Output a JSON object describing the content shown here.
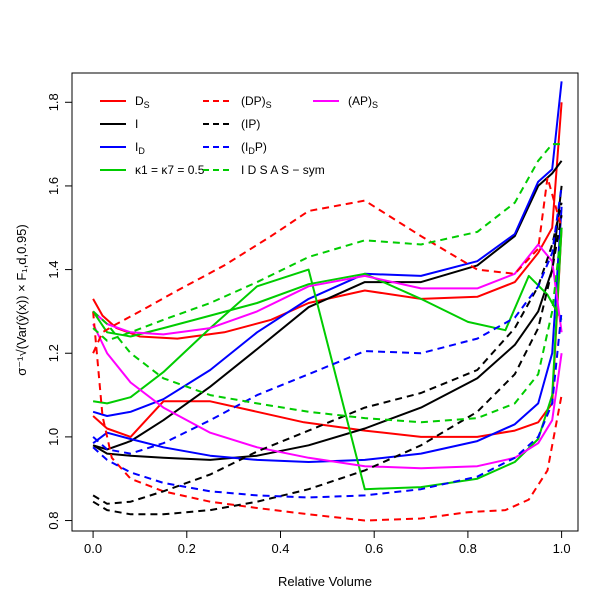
{
  "chart_data": {
    "type": "line",
    "title": "",
    "xlabel": "Relative Volume",
    "ylabel": "σ⁻¹√(Var(ŷ(x)) × F₁,d,0.95)",
    "xlim": [
      0,
      1
    ],
    "ylim": [
      0.8,
      1.85
    ],
    "x_ticks": [
      "0.0",
      "0.2",
      "0.4",
      "0.6",
      "0.8",
      "1.0"
    ],
    "y_ticks": [
      "0.8",
      "1.0",
      "1.2",
      "1.4",
      "1.6",
      "1.8"
    ],
    "grid": false,
    "legend_position": "top",
    "legend": [
      {
        "label": "Ds",
        "color": "#ff0000",
        "dash": "solid",
        "main": "D",
        "sub": "S"
      },
      {
        "label": "I",
        "color": "#000000",
        "dash": "solid",
        "main": "I",
        "sub": ""
      },
      {
        "label": "ID",
        "color": "#0000ff",
        "dash": "solid",
        "main": "I",
        "sub": "D"
      },
      {
        "label": "κ1 = κ7 = 0.5",
        "color": "#00cc00",
        "dash": "solid",
        "main": "κ1 =  κ7 = 0.5",
        "sub": ""
      },
      {
        "label": "(DP)s",
        "color": "#ff0000",
        "dash": "dashed",
        "main": "(DP)",
        "sub": "S"
      },
      {
        "label": "(IP)",
        "color": "#000000",
        "dash": "dashed",
        "main": "(IP)",
        "sub": ""
      },
      {
        "label": "(IDP)",
        "color": "#0000ff",
        "dash": "dashed",
        "main": "(I",
        "sub": "D",
        "tail": "P)"
      },
      {
        "label": "ID Ds As − sym",
        "color": "#00cc00",
        "dash": "dashed",
        "main": "I D S A S − sym",
        "sub": ""
      },
      {
        "label": "(AP)s",
        "color": "#ff00ff",
        "dash": "solid",
        "main": "(AP)",
        "sub": "S"
      }
    ],
    "series": [
      {
        "legend": "Ds",
        "color": "#ff0000",
        "dash": "solid",
        "bound": "max",
        "x": [
          0,
          0.02,
          0.05,
          0.1,
          0.18,
          0.28,
          0.38,
          0.46,
          0.58,
          0.7,
          0.82,
          0.9,
          0.95,
          0.98,
          1.0
        ],
        "y": [
          1.33,
          1.29,
          1.26,
          1.24,
          1.235,
          1.25,
          1.28,
          1.32,
          1.35,
          1.33,
          1.335,
          1.37,
          1.44,
          1.5,
          1.8
        ]
      },
      {
        "legend": "Ds",
        "color": "#ff0000",
        "dash": "solid",
        "bound": "min",
        "x": [
          0,
          0.03,
          0.08,
          0.15,
          0.25,
          0.35,
          0.45,
          0.58,
          0.7,
          0.82,
          0.9,
          0.95,
          0.98,
          1.0
        ],
        "y": [
          1.05,
          1.02,
          1.0,
          1.085,
          1.085,
          1.06,
          1.035,
          1.015,
          1.0,
          1.0,
          1.015,
          1.035,
          1.08,
          1.5
        ]
      },
      {
        "legend": "I",
        "color": "#000000",
        "dash": "solid",
        "bound": "max",
        "x": [
          0,
          0.03,
          0.08,
          0.15,
          0.25,
          0.35,
          0.46,
          0.58,
          0.7,
          0.82,
          0.9,
          0.95,
          0.98,
          1.0
        ],
        "y": [
          0.98,
          0.97,
          0.99,
          1.04,
          1.12,
          1.21,
          1.31,
          1.37,
          1.37,
          1.41,
          1.48,
          1.6,
          1.63,
          1.66
        ]
      },
      {
        "legend": "I",
        "color": "#000000",
        "dash": "solid",
        "bound": "min",
        "x": [
          0,
          0.03,
          0.08,
          0.15,
          0.25,
          0.35,
          0.46,
          0.58,
          0.7,
          0.82,
          0.9,
          0.95,
          0.98,
          1.0
        ],
        "y": [
          0.98,
          0.96,
          0.955,
          0.95,
          0.945,
          0.955,
          0.98,
          1.02,
          1.07,
          1.14,
          1.22,
          1.3,
          1.4,
          1.6
        ]
      },
      {
        "legend": "ID",
        "color": "#0000ff",
        "dash": "solid",
        "bound": "max",
        "x": [
          0,
          0.03,
          0.08,
          0.15,
          0.25,
          0.35,
          0.46,
          0.58,
          0.7,
          0.82,
          0.9,
          0.95,
          0.98,
          1.0
        ],
        "y": [
          1.06,
          1.05,
          1.06,
          1.09,
          1.16,
          1.25,
          1.33,
          1.39,
          1.385,
          1.42,
          1.485,
          1.61,
          1.64,
          1.85
        ]
      },
      {
        "legend": "ID",
        "color": "#0000ff",
        "dash": "solid",
        "bound": "min",
        "x": [
          0,
          0.03,
          0.08,
          0.15,
          0.25,
          0.35,
          0.46,
          0.58,
          0.7,
          0.82,
          0.9,
          0.95,
          0.98,
          1.0
        ],
        "y": [
          0.985,
          1.01,
          0.995,
          0.975,
          0.955,
          0.945,
          0.94,
          0.945,
          0.96,
          0.99,
          1.03,
          1.08,
          1.2,
          1.55
        ]
      },
      {
        "legend": "κ1 = κ7 = 0.5",
        "color": "#00cc00",
        "dash": "solid",
        "bound": "max",
        "x": [
          0,
          0.03,
          0.08,
          0.15,
          0.25,
          0.35,
          0.46,
          0.58,
          0.7,
          0.8,
          0.88,
          0.93,
          0.97,
          1.0
        ],
        "y": [
          1.3,
          1.25,
          1.24,
          1.26,
          1.29,
          1.32,
          1.365,
          1.39,
          1.33,
          1.275,
          1.255,
          1.385,
          1.34,
          1.28
        ]
      },
      {
        "legend": "κ1 = κ7 = 0.5",
        "color": "#00cc00",
        "dash": "solid",
        "bound": "min",
        "x": [
          0,
          0.03,
          0.08,
          0.15,
          0.25,
          0.35,
          0.46,
          0.58,
          0.7,
          0.82,
          0.9,
          0.95,
          0.98,
          1.0
        ],
        "y": [
          1.085,
          1.08,
          1.095,
          1.155,
          1.26,
          1.36,
          1.4,
          0.875,
          0.88,
          0.9,
          0.94,
          0.995,
          1.1,
          1.5
        ]
      },
      {
        "legend": "(AP)s",
        "color": "#ff00ff",
        "dash": "solid",
        "bound": "max",
        "x": [
          0,
          0.03,
          0.08,
          0.15,
          0.25,
          0.35,
          0.46,
          0.58,
          0.7,
          0.82,
          0.9,
          0.95,
          0.98,
          1.0
        ],
        "y": [
          1.3,
          1.27,
          1.25,
          1.245,
          1.26,
          1.3,
          1.36,
          1.385,
          1.355,
          1.355,
          1.39,
          1.46,
          1.42,
          1.25
        ]
      },
      {
        "legend": "(AP)s",
        "color": "#ff00ff",
        "dash": "solid",
        "bound": "min",
        "x": [
          0,
          0.03,
          0.08,
          0.15,
          0.25,
          0.35,
          0.46,
          0.58,
          0.7,
          0.82,
          0.9,
          0.95,
          0.98,
          1.0
        ],
        "y": [
          1.27,
          1.2,
          1.13,
          1.07,
          1.01,
          0.975,
          0.95,
          0.93,
          0.925,
          0.93,
          0.95,
          0.985,
          1.04,
          1.2
        ]
      },
      {
        "legend": "(DP)s",
        "color": "#ff0000",
        "dash": "dashed",
        "bound": "max",
        "x": [
          0,
          0.02,
          0.05,
          0.1,
          0.18,
          0.28,
          0.38,
          0.46,
          0.58,
          0.7,
          0.82,
          0.9,
          0.95,
          0.97,
          1.0
        ],
        "y": [
          1.2,
          1.25,
          1.27,
          1.3,
          1.35,
          1.41,
          1.48,
          1.54,
          1.565,
          1.48,
          1.4,
          1.39,
          1.45,
          1.62,
          1.5
        ]
      },
      {
        "legend": "(DP)s",
        "color": "#ff0000",
        "dash": "dashed",
        "bound": "min",
        "x": [
          0,
          0.02,
          0.04,
          0.08,
          0.15,
          0.25,
          0.35,
          0.46,
          0.58,
          0.7,
          0.8,
          0.88,
          0.93,
          0.97,
          1.0
        ],
        "y": [
          1.3,
          1.05,
          0.95,
          0.9,
          0.87,
          0.845,
          0.83,
          0.815,
          0.8,
          0.805,
          0.82,
          0.825,
          0.85,
          0.92,
          1.1
        ]
      },
      {
        "legend": "(IP)",
        "color": "#000000",
        "dash": "dashed",
        "bound": "max",
        "x": [
          0,
          0.03,
          0.08,
          0.15,
          0.25,
          0.35,
          0.46,
          0.58,
          0.7,
          0.82,
          0.9,
          0.95,
          0.98,
          1.0
        ],
        "y": [
          0.86,
          0.84,
          0.845,
          0.87,
          0.91,
          0.965,
          1.015,
          1.07,
          1.105,
          1.16,
          1.26,
          1.36,
          1.46,
          1.56
        ]
      },
      {
        "legend": "(IP)",
        "color": "#000000",
        "dash": "dashed",
        "bound": "min",
        "x": [
          0,
          0.03,
          0.08,
          0.15,
          0.25,
          0.35,
          0.46,
          0.58,
          0.7,
          0.82,
          0.9,
          0.95,
          0.98,
          1.0
        ],
        "y": [
          0.845,
          0.825,
          0.815,
          0.815,
          0.825,
          0.845,
          0.875,
          0.92,
          0.98,
          1.06,
          1.15,
          1.26,
          1.4,
          1.53
        ]
      },
      {
        "legend": "(IDP)",
        "color": "#0000ff",
        "dash": "dashed",
        "bound": "max",
        "x": [
          0,
          0.03,
          0.08,
          0.15,
          0.25,
          0.35,
          0.46,
          0.58,
          0.7,
          0.82,
          0.9,
          0.95,
          0.98,
          1.0
        ],
        "y": [
          1.0,
          0.97,
          0.96,
          0.985,
          1.04,
          1.1,
          1.15,
          1.205,
          1.2,
          1.235,
          1.285,
          1.36,
          1.44,
          1.6
        ]
      },
      {
        "legend": "(IDP)",
        "color": "#0000ff",
        "dash": "dashed",
        "bound": "min",
        "x": [
          0,
          0.03,
          0.08,
          0.15,
          0.25,
          0.35,
          0.46,
          0.58,
          0.7,
          0.82,
          0.9,
          0.95,
          0.98,
          1.0
        ],
        "y": [
          0.975,
          0.945,
          0.915,
          0.89,
          0.87,
          0.86,
          0.855,
          0.86,
          0.875,
          0.905,
          0.95,
          1.0,
          1.08,
          1.3
        ]
      },
      {
        "legend": "ID Ds As − sym",
        "color": "#00cc00",
        "dash": "dashed",
        "bound": "max",
        "x": [
          0,
          0.03,
          0.08,
          0.15,
          0.25,
          0.35,
          0.46,
          0.58,
          0.7,
          0.82,
          0.9,
          0.95,
          0.98,
          1.0
        ],
        "y": [
          1.26,
          1.23,
          1.25,
          1.28,
          1.32,
          1.37,
          1.43,
          1.47,
          1.46,
          1.49,
          1.56,
          1.66,
          1.7,
          1.7
        ]
      },
      {
        "legend": "ID Ds As − sym",
        "color": "#00cc00",
        "dash": "dashed",
        "bound": "min",
        "x": [
          0,
          0.03,
          0.08,
          0.15,
          0.25,
          0.35,
          0.46,
          0.58,
          0.7,
          0.82,
          0.9,
          0.95,
          0.98,
          1.0
        ],
        "y": [
          1.3,
          1.27,
          1.2,
          1.14,
          1.1,
          1.08,
          1.06,
          1.045,
          1.035,
          1.045,
          1.08,
          1.15,
          1.3,
          1.5
        ]
      }
    ]
  }
}
